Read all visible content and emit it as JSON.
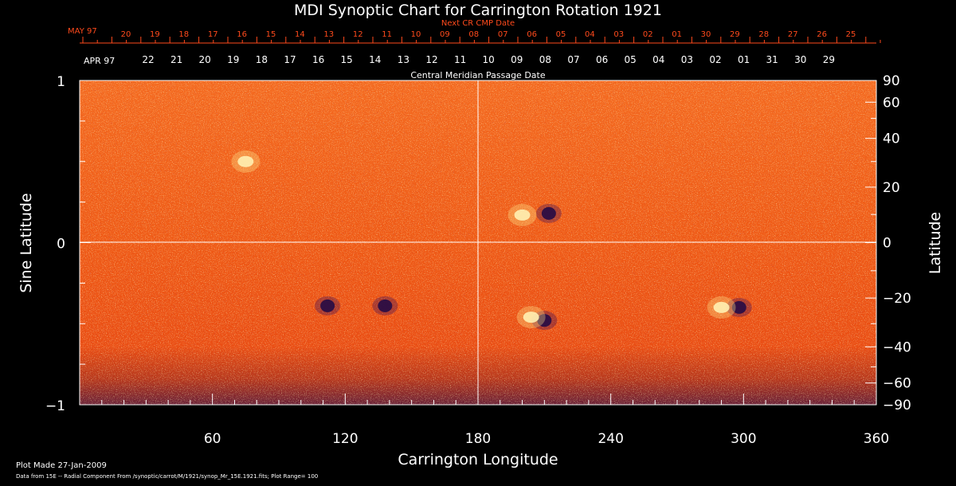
{
  "chart_data": {
    "type": "heatmap",
    "title": "MDI Synoptic Chart for Carrington Rotation 1921",
    "xlabel": "Carrington Longitude",
    "ylabel_left": "Sine Latitude",
    "ylabel_right": "Latitude",
    "xlim": [
      0,
      360
    ],
    "ylim": [
      -1,
      1
    ],
    "x_ticks": [
      "60",
      "120",
      "180",
      "240",
      "300",
      "360"
    ],
    "y_ticks_left": [
      "1",
      "0",
      "−1"
    ],
    "y_ticks_right": [
      "90",
      "60",
      "40",
      "20",
      "0",
      "−20",
      "−40",
      "−60",
      "−90"
    ],
    "y_ticks_right_values": [
      90,
      60,
      40,
      20,
      0,
      -20,
      -40,
      -60,
      -90
    ],
    "top_axis": {
      "title": "Next CR CMP Date",
      "month_label": "MAY 97",
      "days": [
        "20",
        "19",
        "18",
        "17",
        "16",
        "15",
        "14",
        "13",
        "12",
        "11",
        "10",
        "09",
        "08",
        "07",
        "06",
        "05",
        "04",
        "03",
        "02",
        "01",
        "30",
        "29",
        "28",
        "27",
        "26",
        "25"
      ]
    },
    "bottom_date_axis": {
      "title": "Central Meridian Passage Date",
      "month_label": "APR 97",
      "days": [
        "22",
        "21",
        "20",
        "19",
        "18",
        "17",
        "16",
        "15",
        "14",
        "13",
        "12",
        "11",
        "10",
        "09",
        "08",
        "07",
        "06",
        "05",
        "04",
        "03",
        "02",
        "01",
        "31",
        "30",
        "29"
      ]
    },
    "features": [
      {
        "lon": 212,
        "sinlat": 0.18,
        "polarity": "negative"
      },
      {
        "lon": 200,
        "sinlat": 0.17,
        "polarity": "positive"
      },
      {
        "lon": 210,
        "sinlat": -0.48,
        "polarity": "negative"
      },
      {
        "lon": 204,
        "sinlat": -0.46,
        "polarity": "positive"
      },
      {
        "lon": 298,
        "sinlat": -0.4,
        "polarity": "negative"
      },
      {
        "lon": 290,
        "sinlat": -0.4,
        "polarity": "positive"
      },
      {
        "lon": 112,
        "sinlat": -0.39,
        "polarity": "negative"
      },
      {
        "lon": 138,
        "sinlat": -0.39,
        "polarity": "negative"
      },
      {
        "lon": 75,
        "sinlat": 0.5,
        "polarity": "positive"
      }
    ]
  },
  "footer": {
    "line1": "Plot Made 27-Jan-2009",
    "line2": "Data from 15E -- Radial Component From /synoptic/carrot/M/1921/synop_Mr_15E.1921.fits; Plot Range= 100"
  }
}
